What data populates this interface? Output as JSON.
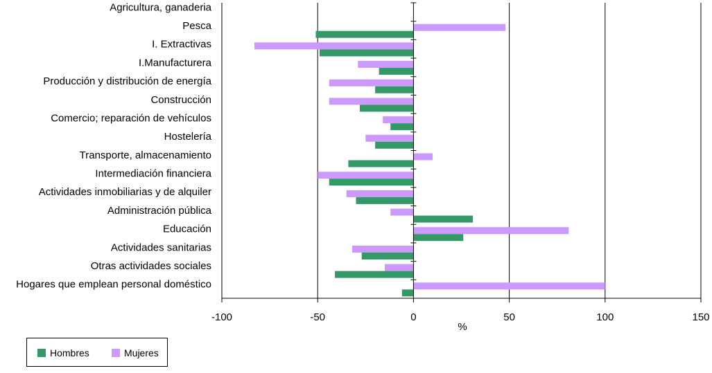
{
  "chart_data": {
    "type": "bar",
    "orientation": "horizontal",
    "categories": [
      "Agricultura, ganaderia",
      "Pesca",
      "I. Extractivas",
      "I.Manufacturera",
      "Producción y distribución de energía",
      "Construcción",
      "Comercio; reparación de vehículos",
      "Hostelería",
      "Transporte, almacenamiento",
      "Intermediación financiera",
      "Actividades inmobiliarias y de alquiler",
      "Administración pública",
      "Educación",
      "Actividades sanitarias",
      "Otras actividades sociales",
      "Hogares que emplean personal doméstico"
    ],
    "series": [
      {
        "name": "Mujeres",
        "color": "#cc99ff",
        "values": [
          0,
          48,
          -83,
          -29,
          -44,
          -44,
          -16,
          -25,
          10,
          -50,
          -35,
          -12,
          81,
          -32,
          -15,
          100
        ]
      },
      {
        "name": "Hombres",
        "color": "#339966",
        "values": [
          0,
          -51,
          -49,
          -18,
          -20,
          -28,
          -12,
          -20,
          -34,
          -44,
          -30,
          31,
          26,
          -27,
          -41,
          -6
        ]
      }
    ],
    "xlim": [
      -100,
      150
    ],
    "xticks": [
      -100,
      -50,
      0,
      50,
      100,
      150
    ],
    "xlabel": "%",
    "grid": "vertical",
    "legend": {
      "placement": "bottom-left",
      "entries": [
        "Hombres",
        "Mujeres"
      ]
    }
  }
}
